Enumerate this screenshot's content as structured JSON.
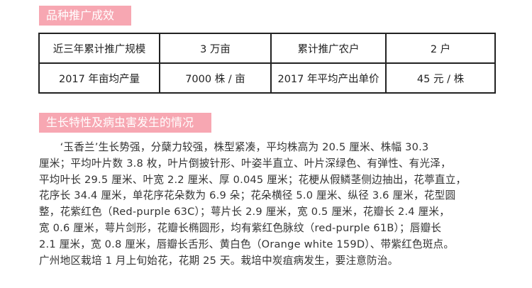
{
  "section1": {
    "title": "品种推广成效",
    "table": {
      "rows": [
        [
          "近三年累计推广规模",
          "3 万亩",
          "累计推广农户",
          "2 户"
        ],
        [
          "2017 年亩均产量",
          "7000 株 / 亩",
          "2017 年平均产出单价",
          "45 元 / 株"
        ]
      ]
    }
  },
  "section2": {
    "title": "生长特性及病虫害发生的情况",
    "lines": [
      "　　‘玉香兰’生长势强，分蘖力较强，株型紧凑，平均株高为 20.5 厘米、株幅 30.3",
      "厘米；平均叶片数 3.8 枚，叶片倒披针形、叶姿半直立、叶片深绿色、有弹性、有光泽，",
      "平均叶长 29.5 厘米、叶宽 2.2 厘米、厚 0.045 厘米；花梗从假鳞茎侧边抽出，花葶直立，",
      "花序长 34.4 厘米，单花序花朵数为 6.9 朵；花朵横径 5.0 厘米、纵径 3.6 厘米，花型圆",
      "整，花紫红色（Red-purple  63C）；萼片长 2.9 厘米，宽 0.5 厘米，花瓣长 2.4 厘米，",
      "宽 0.6 厘米，萼片剑形，花瓣长椭圆形，均有紫红色脉纹（red-purple 61B）；唇瓣长",
      "2.1 厘米，宽 0.8 厘米，唇瓣长舌形、黄白色（Orange white 159D）、带紫红色斑点。",
      "广州地区栽培 1 月上旬始花，花期 25 天。栽培中炭疽病发生，要注意防治。"
    ]
  },
  "colors": {
    "header_bg": "#f7a7b2",
    "header_text": "#ffffff",
    "border": "#222222"
  }
}
